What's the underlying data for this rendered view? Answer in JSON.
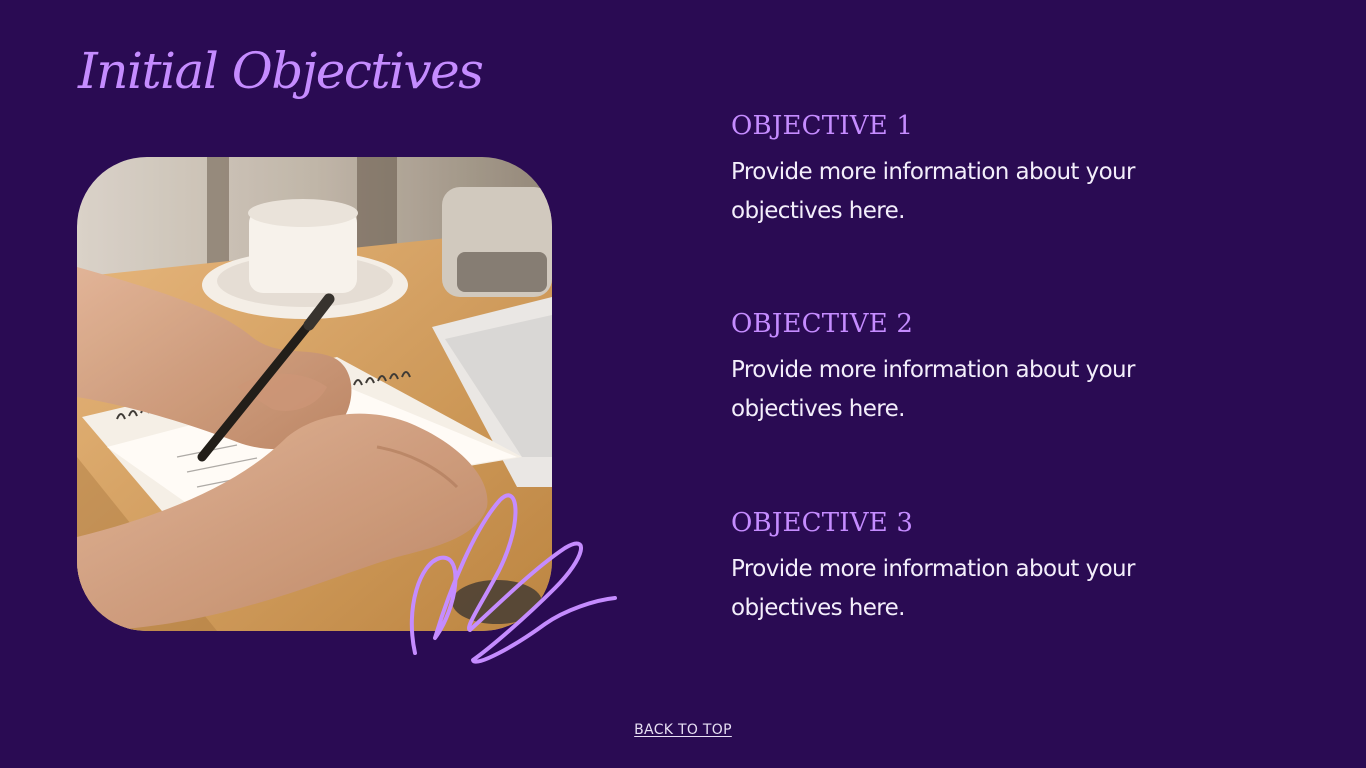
{
  "header": {
    "title": "Initial Objectives"
  },
  "image": {
    "subject": "hands writing in a spiral notebook with a pen next to a coffee cup"
  },
  "objectives": [
    {
      "title": "OBJECTIVE 1",
      "text": "Provide more information about your objectives here."
    },
    {
      "title": "OBJECTIVE 2",
      "text": "Provide more information about your objectives here."
    },
    {
      "title": "OBJECTIVE 3",
      "text": "Provide more information about your objectives here."
    }
  ],
  "footer": {
    "link_label": "BACK TO TOP"
  },
  "colors": {
    "background": "#2a0b53",
    "accent": "#c58cff",
    "body_text": "#f3eefb"
  }
}
